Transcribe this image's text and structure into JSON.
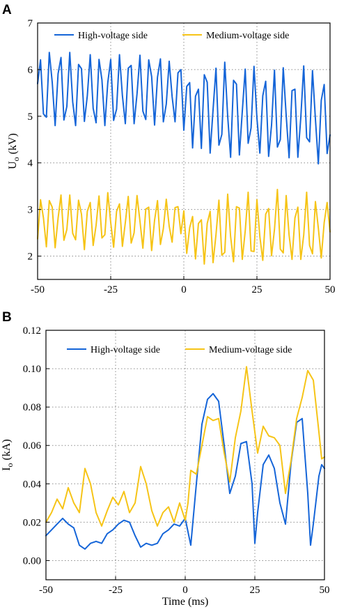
{
  "colors": {
    "high": "#1565d8",
    "medium": "#f6c417"
  },
  "chart_data": [
    {
      "panel": "A",
      "type": "line",
      "ylabel_main": "U",
      "ylabel_sub": "o",
      "ylabel_unit": " (kV)",
      "xlabel": "",
      "xlim": [
        -50,
        50
      ],
      "ylim": [
        1.5,
        7
      ],
      "xticks": [
        -50,
        -25,
        0,
        25,
        50
      ],
      "xtick_labels": [
        "-50",
        "-25",
        "0",
        "25",
        "50"
      ],
      "yticks": [
        2,
        3,
        4,
        5,
        6,
        7
      ],
      "ytick_labels": [
        "2",
        "3",
        "4",
        "5",
        "6",
        "7"
      ],
      "grid": true,
      "legend": "top",
      "series": [
        {
          "name": "High-voltage side",
          "color_key": "high",
          "x": [
            -50.0,
            -49.0,
            -48.0,
            -47.0,
            -46.0,
            -45.0,
            -44.0,
            -43.0,
            -42.0,
            -41.0,
            -40.0,
            -39.0,
            -38.0,
            -37.0,
            -36.0,
            -35.0,
            -34.0,
            -33.0,
            -32.0,
            -31.0,
            -30.0,
            -29.0,
            -28.0,
            -27.0,
            -26.0,
            -25.0,
            -24.0,
            -23.0,
            -22.0,
            -21.0,
            -20.0,
            -19.0,
            -18.0,
            -17.0,
            -16.0,
            -15.0,
            -14.0,
            -13.0,
            -12.0,
            -11.0,
            -10.0,
            -9.0,
            -8.0,
            -7.0,
            -6.0,
            -5.0,
            -4.0,
            -3.0,
            -2.0,
            -1.0,
            0.0,
            1.0,
            2.0,
            3.0,
            4.0,
            5.0,
            6.0,
            7.0,
            8.0,
            9.0,
            10.0,
            11.0,
            12.0,
            13.0,
            14.0,
            15.0,
            16.0,
            17.0,
            18.0,
            19.0,
            20.0,
            21.0,
            22.0,
            23.0,
            24.0,
            25.0,
            26.0,
            27.0,
            28.0,
            29.0,
            30.0,
            31.0,
            32.0,
            33.0,
            34.0,
            35.0,
            36.0,
            37.0,
            38.0,
            39.0,
            40.0,
            41.0,
            42.0,
            43.0,
            44.0,
            45.0,
            46.0,
            47.0,
            48.0,
            49.0,
            50.0
          ],
          "y": [
            5.7,
            6.21,
            5.05,
            4.98,
            6.37,
            5.73,
            4.8,
            5.91,
            6.26,
            4.92,
            5.21,
            6.37,
            5.31,
            4.8,
            6.11,
            6.02,
            4.89,
            5.44,
            6.32,
            5.17,
            4.86,
            6.22,
            5.78,
            4.8,
            5.72,
            6.22,
            4.91,
            5.15,
            6.32,
            5.44,
            4.84,
            6.03,
            6.09,
            4.84,
            5.48,
            6.31,
            5.11,
            4.93,
            6.21,
            5.85,
            4.81,
            5.84,
            6.23,
            4.88,
            5.26,
            6.18,
            5.42,
            4.88,
            5.93,
            6.0,
            4.7,
            5.64,
            5.72,
            4.32,
            5.43,
            5.58,
            4.31,
            5.89,
            5.73,
            4.21,
            5.14,
            6.03,
            4.38,
            4.61,
            6.16,
            5.0,
            4.12,
            5.77,
            5.69,
            4.17,
            5.11,
            6.01,
            4.42,
            4.75,
            6.07,
            4.96,
            4.21,
            5.44,
            5.75,
            4.14,
            4.81,
            5.99,
            4.34,
            4.5,
            6.04,
            5.02,
            4.11,
            5.55,
            5.58,
            4.12,
            4.97,
            6.08,
            4.54,
            4.45,
            5.98,
            4.94,
            3.98,
            5.34,
            5.68,
            4.2,
            4.6
          ]
        },
        {
          "name": "Medium-voltage side",
          "color_key": "medium",
          "x": [
            -50.0,
            -49.0,
            -48.0,
            -47.0,
            -46.0,
            -45.0,
            -44.0,
            -43.0,
            -42.0,
            -41.0,
            -40.0,
            -39.0,
            -38.0,
            -37.0,
            -36.0,
            -35.0,
            -34.0,
            -33.0,
            -32.0,
            -31.0,
            -30.0,
            -29.0,
            -28.0,
            -27.0,
            -26.0,
            -25.0,
            -24.0,
            -23.0,
            -22.0,
            -21.0,
            -20.0,
            -19.0,
            -18.0,
            -17.0,
            -16.0,
            -15.0,
            -14.0,
            -13.0,
            -12.0,
            -11.0,
            -10.0,
            -9.0,
            -8.0,
            -7.0,
            -6.0,
            -5.0,
            -4.0,
            -3.0,
            -2.0,
            -1.0,
            0.0,
            1.0,
            2.0,
            3.0,
            4.0,
            5.0,
            6.0,
            7.0,
            8.0,
            9.0,
            10.0,
            11.0,
            12.0,
            13.0,
            14.0,
            15.0,
            16.0,
            17.0,
            18.0,
            19.0,
            20.0,
            21.0,
            22.0,
            23.0,
            24.0,
            25.0,
            26.0,
            27.0,
            28.0,
            29.0,
            30.0,
            31.0,
            32.0,
            33.0,
            34.0,
            35.0,
            36.0,
            37.0,
            38.0,
            39.0,
            40.0,
            41.0,
            42.0,
            43.0,
            44.0,
            45.0,
            46.0,
            47.0,
            48.0,
            49.0,
            50.0
          ],
          "y": [
            2.37,
            3.21,
            2.82,
            2.2,
            3.19,
            3.05,
            2.18,
            2.81,
            3.31,
            2.34,
            2.57,
            3.31,
            2.49,
            2.35,
            3.2,
            2.9,
            2.14,
            2.96,
            3.15,
            2.23,
            2.66,
            3.29,
            2.39,
            2.46,
            3.36,
            2.72,
            2.19,
            2.96,
            3.12,
            2.21,
            2.72,
            3.28,
            2.28,
            2.5,
            3.3,
            2.75,
            2.17,
            3.01,
            3.05,
            2.12,
            2.77,
            3.19,
            2.25,
            2.59,
            3.22,
            2.64,
            2.3,
            3.04,
            3.06,
            2.48,
            2.97,
            2.06,
            2.61,
            2.85,
            1.94,
            2.7,
            2.78,
            1.83,
            2.7,
            2.96,
            1.86,
            2.46,
            3.2,
            2.02,
            2.08,
            3.33,
            2.42,
            1.88,
            3.06,
            3.03,
            1.93,
            2.54,
            3.37,
            2.11,
            2.1,
            3.21,
            2.42,
            1.91,
            2.9,
            3.02,
            2.01,
            2.57,
            3.43,
            2.15,
            2.07,
            3.3,
            2.45,
            1.93,
            2.82,
            3.05,
            1.93,
            2.45,
            3.37,
            2.23,
            2.05,
            3.17,
            2.6,
            1.96,
            2.72,
            3.15,
            2.52
          ]
        }
      ]
    },
    {
      "panel": "B",
      "type": "line",
      "ylabel_main": "I",
      "ylabel_sub": "o",
      "ylabel_unit": " (kA)",
      "xlabel": "Time (ms)",
      "xlim": [
        -50,
        50
      ],
      "ylim": [
        -0.01,
        0.12
      ],
      "xticks": [
        -50,
        -25,
        0,
        25,
        50
      ],
      "xtick_labels": [
        "-50",
        "-25",
        "0",
        "25",
        "50"
      ],
      "yticks": [
        0.0,
        0.02,
        0.04,
        0.06,
        0.08,
        0.1,
        0.12
      ],
      "ytick_labels": [
        "0.00",
        "0.02",
        "0.04",
        "0.06",
        "0.08",
        "0.10",
        "0.12"
      ],
      "grid": true,
      "legend": "top",
      "series": [
        {
          "name": "High-voltage side",
          "color_key": "high",
          "x": [
            -50,
            -48,
            -46,
            -44,
            -42,
            -40,
            -38,
            -36,
            -34,
            -32,
            -30,
            -28,
            -26,
            -24,
            -22,
            -20,
            -18,
            -16,
            -14,
            -12,
            -10,
            -8,
            -6,
            -4,
            -2,
            0,
            2,
            4,
            6,
            8,
            10,
            12,
            14,
            16,
            18,
            20,
            22,
            24,
            25,
            26,
            28,
            30,
            32,
            34,
            36,
            38,
            40,
            42,
            44,
            45,
            46,
            48,
            49,
            50
          ],
          "y": [
            0.013,
            0.016,
            0.019,
            0.022,
            0.019,
            0.017,
            0.008,
            0.006,
            0.009,
            0.01,
            0.009,
            0.014,
            0.016,
            0.019,
            0.021,
            0.02,
            0.013,
            0.007,
            0.009,
            0.008,
            0.009,
            0.014,
            0.016,
            0.019,
            0.018,
            0.022,
            0.008,
            0.04,
            0.071,
            0.084,
            0.087,
            0.083,
            0.06,
            0.035,
            0.044,
            0.061,
            0.062,
            0.04,
            0.009,
            0.025,
            0.05,
            0.055,
            0.048,
            0.03,
            0.019,
            0.051,
            0.072,
            0.074,
            0.035,
            0.008,
            0.019,
            0.044,
            0.05,
            0.048
          ]
        },
        {
          "name": "Medium-voltage side",
          "color_key": "medium",
          "x": [
            -50,
            -48,
            -46,
            -44,
            -42,
            -40,
            -38,
            -36,
            -34,
            -32,
            -30,
            -28,
            -26,
            -24,
            -22,
            -20,
            -18,
            -16,
            -14,
            -12,
            -10,
            -8,
            -6,
            -4,
            -2,
            0,
            1,
            2,
            4,
            6,
            8,
            10,
            12,
            14,
            16,
            18,
            20,
            22,
            24,
            26,
            28,
            30,
            32,
            34,
            36,
            38,
            40,
            42,
            44,
            46,
            48,
            49,
            50
          ],
          "y": [
            0.02,
            0.025,
            0.032,
            0.027,
            0.038,
            0.03,
            0.025,
            0.048,
            0.04,
            0.025,
            0.018,
            0.026,
            0.033,
            0.029,
            0.036,
            0.025,
            0.03,
            0.049,
            0.04,
            0.026,
            0.018,
            0.025,
            0.028,
            0.02,
            0.03,
            0.021,
            0.03,
            0.047,
            0.045,
            0.06,
            0.075,
            0.073,
            0.074,
            0.056,
            0.041,
            0.064,
            0.078,
            0.101,
            0.078,
            0.056,
            0.07,
            0.065,
            0.064,
            0.06,
            0.035,
            0.052,
            0.074,
            0.085,
            0.099,
            0.094,
            0.067,
            0.053,
            0.054
          ]
        }
      ]
    }
  ]
}
